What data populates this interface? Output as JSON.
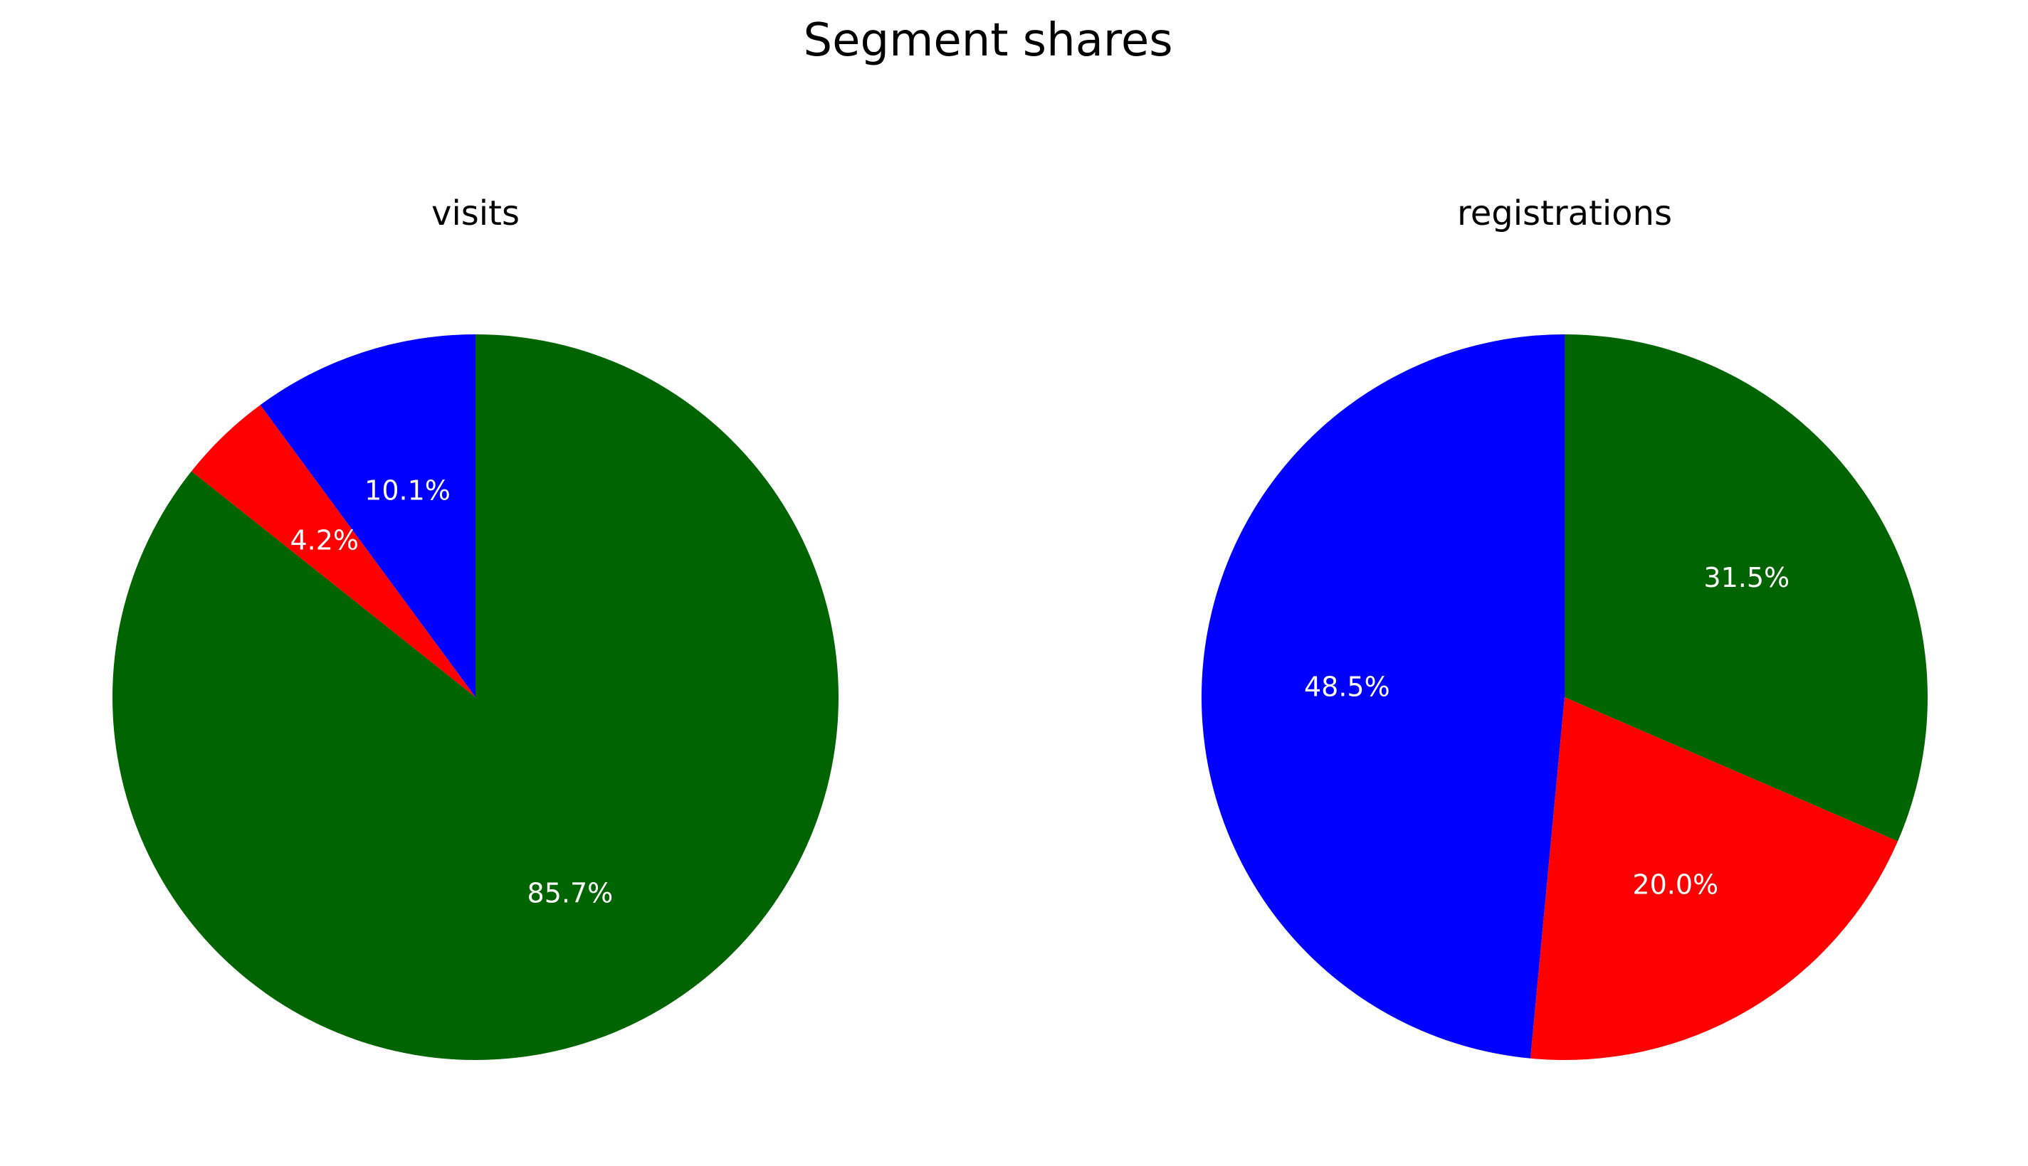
{
  "figure": {
    "title": "Segment shares"
  },
  "chart_data": [
    {
      "type": "pie",
      "title": "visits",
      "start": "12 o'clock, counter-clockwise",
      "slices": [
        {
          "value": 10.1,
          "label": "10.1%",
          "color": "#0000ff"
        },
        {
          "value": 4.2,
          "label": "4.2%",
          "color": "#ff0000"
        },
        {
          "value": 85.7,
          "label": "85.7%",
          "color": "#006400"
        }
      ]
    },
    {
      "type": "pie",
      "title": "registrations",
      "start": "12 o'clock, counter-clockwise",
      "slices": [
        {
          "value": 48.5,
          "label": "48.5%",
          "color": "#0000ff"
        },
        {
          "value": 20.0,
          "label": "20.0%",
          "color": "#ff0000"
        },
        {
          "value": 31.5,
          "label": "31.5%",
          "color": "#006400"
        }
      ]
    }
  ]
}
